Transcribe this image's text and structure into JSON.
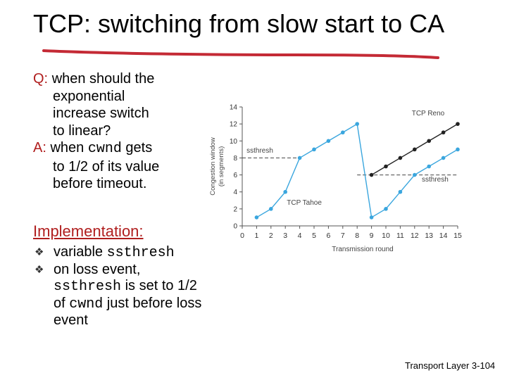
{
  "slide": {
    "title": "TCP: switching from slow start to CA",
    "q_label": "Q:",
    "q_lines": [
      "when should the",
      "exponential",
      "increase switch",
      "to linear?"
    ],
    "a_label": "A:",
    "a_line1_text": "when",
    "a_line1_code": "cwnd",
    "a_line1_tail": "gets",
    "a_lines_rest": [
      "to 1/2 of its value",
      "before timeout."
    ],
    "implementation_heading": "Implementation:",
    "bullet1_text": "variable",
    "bullet1_code": "ssthresh",
    "bullet2_line1": "on loss event,",
    "bullet2_code1": "ssthresh",
    "bullet2_tail1": "is set to 1/2",
    "bullet2_of": "of",
    "bullet2_code2": "cwnd",
    "bullet2_tail2": "just before loss",
    "bullet2_line4": "event",
    "footer_label": "Transport Layer",
    "footer_page": "3-104"
  },
  "colors": {
    "title_underline": "#c42a35",
    "accent_red": "#b01e1e",
    "tahoe": "#3aa6de",
    "reno": "#222222",
    "axis": "#555555"
  },
  "chart_data": {
    "type": "line",
    "xlabel": "Transmission round",
    "ylabel": "Congestion window (in segments)",
    "xlim": [
      0,
      15
    ],
    "ylim": [
      0,
      14
    ],
    "x_ticks": [
      0,
      1,
      2,
      3,
      4,
      5,
      6,
      7,
      8,
      9,
      10,
      11,
      12,
      13,
      14,
      15
    ],
    "y_ticks": [
      0,
      2,
      4,
      6,
      8,
      10,
      12,
      14
    ],
    "series": [
      {
        "name": "TCP Tahoe",
        "x": [
          1,
          2,
          3,
          4,
          5,
          6,
          7,
          8,
          9,
          10,
          11,
          12,
          13,
          14,
          15
        ],
        "y": [
          1,
          2,
          4,
          8,
          9,
          10,
          11,
          12,
          1,
          2,
          4,
          6,
          7,
          8,
          9
        ]
      },
      {
        "name": "TCP Reno",
        "x": [
          9,
          10,
          11,
          12,
          13,
          14,
          15
        ],
        "y": [
          6,
          7,
          8,
          9,
          10,
          11,
          12
        ]
      }
    ],
    "annotations": [
      {
        "text": "ssthresh",
        "x": 0.3,
        "y": 8.6
      },
      {
        "text": "ssthresh",
        "x": 12.5,
        "y": 5.2
      },
      {
        "text": "TCP Tahoe",
        "x": 3.1,
        "y": 2.5
      },
      {
        "text": "TCP Reno",
        "x": 11.8,
        "y": 13.0
      }
    ],
    "ssthresh_levels": [
      {
        "value": 8,
        "x_from": 0,
        "x_to": 4
      },
      {
        "value": 6,
        "x_from": 8,
        "x_to": 15
      }
    ]
  }
}
